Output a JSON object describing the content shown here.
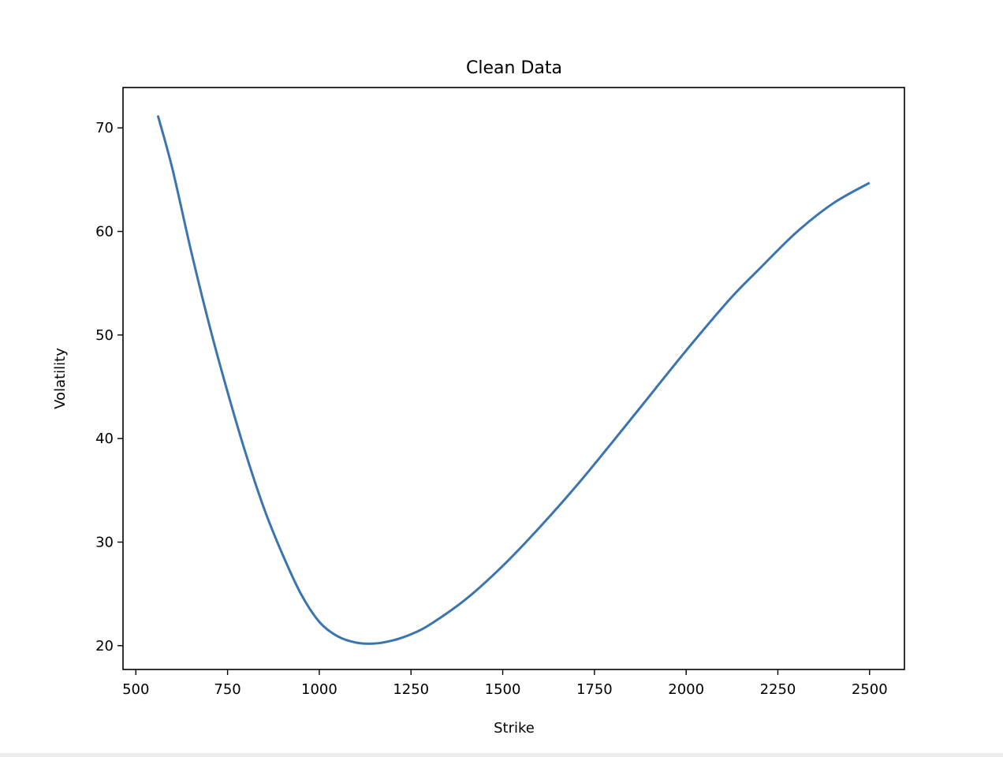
{
  "chart_data": {
    "type": "line",
    "title": "Clean Data",
    "xlabel": "Strike",
    "ylabel": "Volatility",
    "xlim": [
      465,
      2595
    ],
    "ylim": [
      17.7,
      73.9
    ],
    "xticks": [
      500,
      750,
      1000,
      1250,
      1500,
      1750,
      2000,
      2250,
      2500
    ],
    "xtick_labels": [
      "500",
      "750",
      "1000",
      "1250",
      "1500",
      "1750",
      "2000",
      "2250",
      "2500"
    ],
    "yticks": [
      20,
      30,
      40,
      50,
      60,
      70
    ],
    "ytick_labels": [
      "20",
      "30",
      "40",
      "50",
      "60",
      "70"
    ],
    "grid": false,
    "series": [
      {
        "color": "#3a75b0",
        "x": [
          560,
          600,
          650,
          700,
          750,
          800,
          850,
          900,
          950,
          1000,
          1050,
          1100,
          1150,
          1200,
          1250,
          1300,
          1400,
          1500,
          1600,
          1700,
          1800,
          1900,
          2000,
          2120,
          2200,
          2300,
          2400,
          2500
        ],
        "y": [
          71.2,
          66.0,
          58.2,
          51.0,
          44.5,
          38.5,
          33.2,
          28.8,
          25.0,
          22.3,
          20.9,
          20.3,
          20.2,
          20.5,
          21.1,
          22.0,
          24.5,
          27.7,
          31.4,
          35.4,
          39.7,
          44.1,
          48.5,
          53.5,
          56.4,
          59.9,
          62.7,
          64.7
        ]
      }
    ]
  }
}
